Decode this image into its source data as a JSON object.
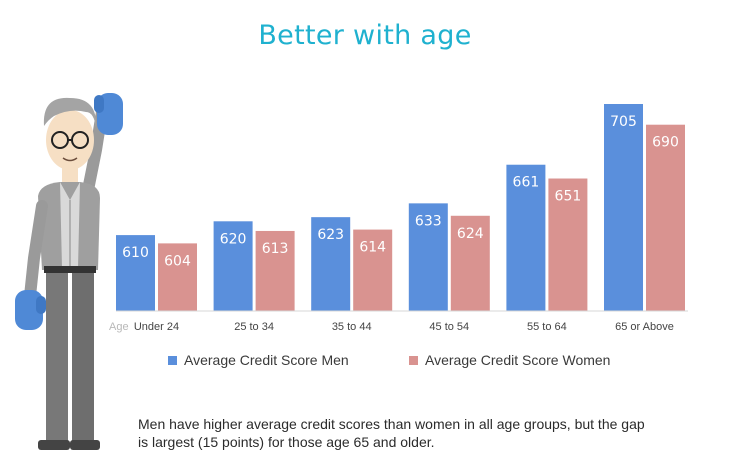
{
  "title": "Better with age",
  "colors": {
    "title": "#1fb1cf",
    "men": "#5a8fdc",
    "women": "#d99390"
  },
  "chart_data": {
    "type": "bar",
    "title": "Better with age",
    "xlabel": "Age",
    "ylabel": "",
    "categories": [
      "Under 24",
      "25 to 34",
      "35 to 44",
      "45 to 54",
      "55 to 64",
      "65 or Above"
    ],
    "series": [
      {
        "name": "Average Credit Score Men",
        "values": [
          610,
          620,
          623,
          633,
          661,
          705
        ]
      },
      {
        "name": "Average Credit Score Women",
        "values": [
          604,
          613,
          614,
          624,
          651,
          690
        ]
      }
    ],
    "grid": false,
    "legend": "bottom",
    "data_labels": true
  },
  "note": {
    "line1": "Men have higher average credit scores than women in all age groups, but the gap",
    "line2": "is largest (15 points) for those age 65 and older."
  },
  "figure": {
    "icon": "man-illustration-icon"
  }
}
